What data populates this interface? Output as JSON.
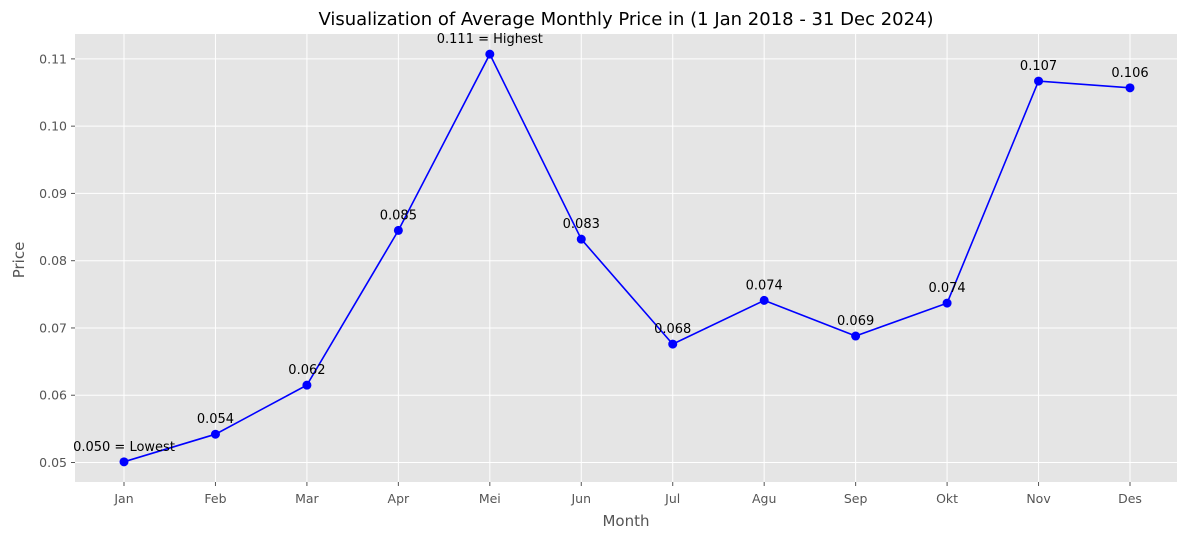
{
  "chart_data": {
    "type": "line",
    "title": "Visualization of Average Monthly Price in (1 Jan 2018 - 31 Dec 2024)",
    "xlabel": "Month",
    "ylabel": "Price",
    "categories": [
      "Jan",
      "Feb",
      "Mar",
      "Apr",
      "Mei",
      "Jun",
      "Jul",
      "Agu",
      "Sep",
      "Okt",
      "Nov",
      "Des"
    ],
    "values": [
      0.0501,
      0.0542,
      0.0615,
      0.0845,
      0.1107,
      0.0832,
      0.0676,
      0.0741,
      0.0688,
      0.0737,
      0.1067,
      0.1057
    ],
    "labels": [
      "0.050 = Lowest",
      "0.054",
      "0.062",
      "0.085",
      "0.111 = Highest",
      "0.083",
      "0.068",
      "0.074",
      "0.069",
      "0.074",
      "0.107",
      "0.106"
    ],
    "yticks": [
      0.05,
      0.06,
      0.07,
      0.08,
      0.09,
      0.1,
      0.11
    ],
    "ytick_labels": [
      "0.05",
      "0.06",
      "0.07",
      "0.08",
      "0.09",
      "0.10",
      "0.11"
    ],
    "ylim": [
      0.0471,
      0.1137
    ],
    "grid": true,
    "colors": {
      "line": "#0000ff",
      "marker": "#0000ff",
      "plot_background": "#e5e5e5",
      "grid": "#ffffff"
    }
  }
}
